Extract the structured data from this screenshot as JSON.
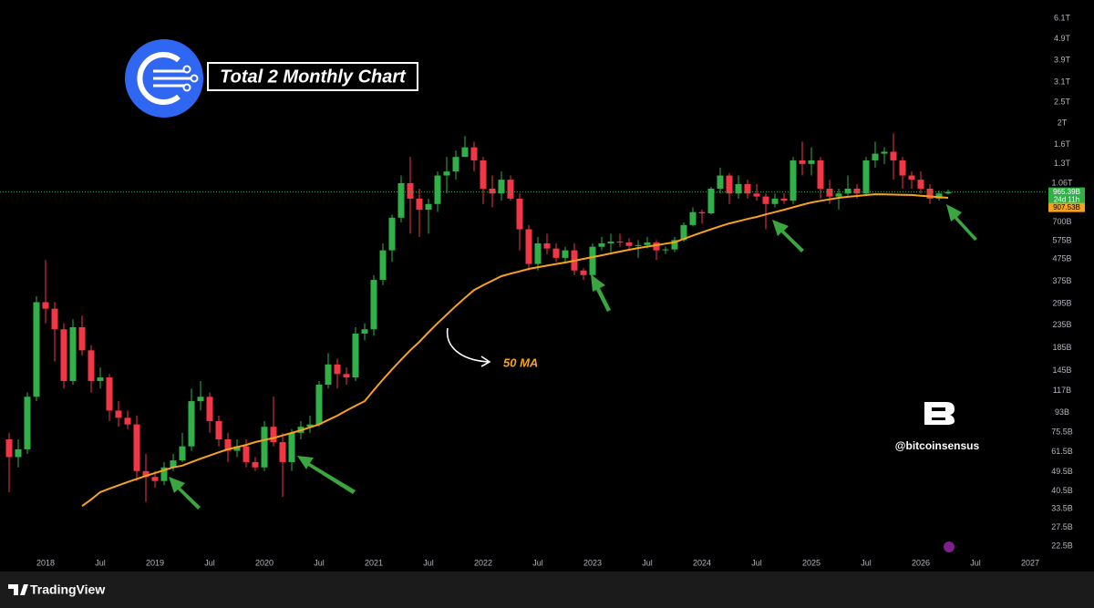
{
  "chart_data": {
    "type": "candlestick",
    "title": "Total 2 Monthly Chart",
    "log_scale": true,
    "grid": false,
    "up_color": "#31b048",
    "down_color": "#f23645",
    "price_line": true,
    "categories": [
      "2017-09",
      "2017-10",
      "2017-11",
      "2017-12",
      "2018-01",
      "2018-02",
      "2018-03",
      "2018-04",
      "2018-05",
      "2018-06",
      "2018-07",
      "2018-08",
      "2018-09",
      "2018-10",
      "2018-11",
      "2018-12",
      "2019-01",
      "2019-02",
      "2019-03",
      "2019-04",
      "2019-05",
      "2019-06",
      "2019-07",
      "2019-08",
      "2019-09",
      "2019-10",
      "2019-11",
      "2019-12",
      "2020-01",
      "2020-02",
      "2020-03",
      "2020-04",
      "2020-05",
      "2020-06",
      "2020-07",
      "2020-08",
      "2020-09",
      "2020-10",
      "2020-11",
      "2020-12",
      "2021-01",
      "2021-02",
      "2021-03",
      "2021-04",
      "2021-05",
      "2021-06",
      "2021-07",
      "2021-08",
      "2021-09",
      "2021-10",
      "2021-11",
      "2021-12",
      "2022-01",
      "2022-02",
      "2022-03",
      "2022-04",
      "2022-05",
      "2022-06",
      "2022-07",
      "2022-08",
      "2022-09",
      "2022-10",
      "2022-11",
      "2022-12",
      "2023-01",
      "2023-02",
      "2023-03",
      "2023-04",
      "2023-05",
      "2023-06",
      "2023-07",
      "2023-08",
      "2023-09",
      "2023-10",
      "2023-11",
      "2023-12",
      "2024-01",
      "2024-02",
      "2024-03",
      "2024-04",
      "2024-05",
      "2024-06",
      "2024-07",
      "2024-08",
      "2024-09",
      "2024-10",
      "2024-11",
      "2024-12",
      "2025-01",
      "2025-02",
      "2025-03",
      "2025-04",
      "2025-05",
      "2025-06",
      "2025-07",
      "2025-08",
      "2025-09",
      "2025-10",
      "2025-11",
      "2025-12",
      "2026-01",
      "2026-02",
      "2026-03",
      "2026-04"
    ],
    "open": [
      70,
      58,
      63,
      110,
      300,
      280,
      225,
      130,
      230,
      180,
      130,
      135,
      95,
      88,
      82,
      50,
      47,
      45,
      52,
      56,
      65,
      105,
      110,
      85,
      70,
      62,
      65,
      55,
      52,
      80,
      68,
      55,
      75,
      80,
      82,
      125,
      155,
      140,
      135,
      215,
      225,
      380,
      520,
      735,
      1060,
      900,
      800,
      850,
      1150,
      1200,
      1400,
      1550,
      1350,
      1000,
      950,
      1100,
      900,
      650,
      450,
      560,
      530,
      480,
      520,
      420,
      400,
      540,
      560,
      570,
      565,
      545,
      550,
      565,
      520,
      525,
      580,
      680,
      780,
      770,
      1000,
      1150,
      950,
      1050,
      950,
      920,
      850,
      900,
      880,
      1350,
      1300,
      1350,
      1000,
      920,
      950,
      1000,
      950,
      1350,
      1450,
      1480,
      1350,
      1150,
      1100,
      1000,
      900,
      950
    ],
    "high": [
      75,
      70,
      115,
      320,
      470,
      300,
      240,
      250,
      260,
      190,
      150,
      140,
      105,
      95,
      90,
      60,
      50,
      55,
      60,
      75,
      120,
      130,
      115,
      90,
      75,
      70,
      70,
      58,
      85,
      110,
      75,
      78,
      85,
      90,
      130,
      175,
      165,
      150,
      230,
      240,
      400,
      560,
      760,
      1150,
      1400,
      1000,
      900,
      1200,
      1400,
      1500,
      1750,
      1650,
      1400,
      1150,
      1200,
      1150,
      950,
      680,
      600,
      620,
      560,
      540,
      560,
      430,
      560,
      600,
      620,
      620,
      590,
      580,
      600,
      580,
      540,
      600,
      700,
      820,
      800,
      1020,
      1250,
      1180,
      1150,
      1100,
      1050,
      950,
      950,
      950,
      1400,
      1650,
      1550,
      1400,
      1100,
      1000,
      1150,
      1050,
      1400,
      1650,
      1550,
      1800,
      1400,
      1200,
      1200,
      1050,
      980,
      990
    ],
    "low": [
      40,
      52,
      60,
      105,
      240,
      160,
      120,
      125,
      170,
      115,
      120,
      85,
      80,
      78,
      45,
      36,
      42,
      43,
      50,
      55,
      62,
      95,
      75,
      65,
      55,
      58,
      52,
      50,
      50,
      65,
      38,
      50,
      70,
      75,
      80,
      120,
      120,
      125,
      130,
      200,
      210,
      360,
      460,
      700,
      620,
      600,
      620,
      780,
      950,
      1100,
      1400,
      1200,
      850,
      820,
      880,
      880,
      520,
      420,
      420,
      500,
      460,
      460,
      400,
      380,
      395,
      520,
      510,
      540,
      520,
      480,
      530,
      470,
      500,
      510,
      570,
      670,
      690,
      760,
      950,
      850,
      900,
      900,
      880,
      650,
      820,
      850,
      850,
      1150,
      1150,
      900,
      850,
      800,
      930,
      900,
      940,
      1250,
      1300,
      1100,
      1000,
      1000,
      950,
      850,
      880,
      940
    ],
    "close": [
      58,
      63,
      110,
      300,
      280,
      225,
      130,
      230,
      180,
      130,
      135,
      95,
      88,
      82,
      50,
      47,
      45,
      52,
      56,
      65,
      105,
      110,
      85,
      70,
      62,
      65,
      55,
      52,
      80,
      68,
      55,
      75,
      80,
      82,
      125,
      155,
      140,
      135,
      215,
      225,
      380,
      520,
      735,
      1060,
      900,
      800,
      850,
      1150,
      1200,
      1400,
      1550,
      1350,
      1000,
      950,
      1100,
      900,
      650,
      450,
      560,
      530,
      480,
      520,
      420,
      400,
      540,
      560,
      570,
      565,
      545,
      550,
      565,
      520,
      525,
      580,
      680,
      780,
      770,
      1000,
      1150,
      950,
      1050,
      950,
      920,
      850,
      900,
      880,
      1350,
      1300,
      1350,
      1000,
      920,
      950,
      1000,
      950,
      1350,
      1450,
      1480,
      1350,
      1150,
      1100,
      1000,
      900,
      950,
      965.39
    ],
    "overlay": {
      "color": "#f7a21b",
      "values": [
        null,
        null,
        null,
        null,
        null,
        null,
        null,
        null,
        34.5,
        37,
        40,
        41.5,
        43,
        44.5,
        46,
        47.5,
        49,
        50.5,
        52,
        53,
        55,
        57,
        59,
        61,
        63,
        64.5,
        66,
        68,
        69.5,
        71,
        73,
        75,
        77,
        79.5,
        82,
        86,
        90,
        95,
        100,
        105,
        118,
        132,
        147,
        163,
        180,
        197,
        218,
        240,
        263,
        288,
        314,
        341,
        359,
        377,
        395,
        406,
        416,
        427,
        435,
        442,
        450,
        457,
        466,
        475,
        484,
        493,
        503,
        513,
        523,
        533,
        541,
        549,
        558,
        566,
        587,
        608,
        629,
        650,
        671,
        692,
        708,
        725,
        741,
        761,
        780,
        800,
        821,
        843,
        864,
        879,
        893,
        908,
        917,
        925,
        934,
        943,
        941,
        939,
        937,
        935,
        928,
        921,
        914,
        907.53
      ]
    },
    "price_label": "965.39B",
    "countdown": "24d 11h",
    "overlay_label": "907.53B",
    "ylim": [
      20.9,
      7400
    ],
    "yticks": [
      {
        "value": 6100,
        "label": "6.1T"
      },
      {
        "value": 4900,
        "label": "4.9T"
      },
      {
        "value": 3900,
        "label": "3.9T"
      },
      {
        "value": 3100,
        "label": "3.1T"
      },
      {
        "value": 2500,
        "label": "2.5T"
      },
      {
        "value": 2000,
        "label": "2T"
      },
      {
        "value": 1600,
        "label": "1.6T"
      },
      {
        "value": 1300,
        "label": "1.3T"
      },
      {
        "value": 1060,
        "label": "1.06T"
      },
      {
        "value": 700,
        "label": "700B"
      },
      {
        "value": 575,
        "label": "575B"
      },
      {
        "value": 475,
        "label": "475B"
      },
      {
        "value": 375,
        "label": "375B"
      },
      {
        "value": 295,
        "label": "295B"
      },
      {
        "value": 235,
        "label": "235B"
      },
      {
        "value": 185,
        "label": "185B"
      },
      {
        "value": 145,
        "label": "145B"
      },
      {
        "value": 117,
        "label": "117B"
      },
      {
        "value": 93,
        "label": "93B"
      },
      {
        "value": 75.5,
        "label": "75.5B"
      },
      {
        "value": 61.5,
        "label": "61.5B"
      },
      {
        "value": 49.5,
        "label": "49.5B"
      },
      {
        "value": 40.5,
        "label": "40.5B"
      },
      {
        "value": 33.5,
        "label": "33.5B"
      },
      {
        "value": 27.5,
        "label": "27.5B"
      },
      {
        "value": 22.5,
        "label": "22.5B"
      }
    ],
    "xticks": [
      {
        "value": "2018-01",
        "label": "2018"
      },
      {
        "value": "2018-07",
        "label": "Jul"
      },
      {
        "value": "2019-01",
        "label": "2019"
      },
      {
        "value": "2019-07",
        "label": "Jul"
      },
      {
        "value": "2020-01",
        "label": "2020"
      },
      {
        "value": "2020-07",
        "label": "Jul"
      },
      {
        "value": "2021-01",
        "label": "2021"
      },
      {
        "value": "2021-07",
        "label": "Jul"
      },
      {
        "value": "2022-01",
        "label": "2022"
      },
      {
        "value": "2022-07",
        "label": "Jul"
      },
      {
        "value": "2023-01",
        "label": "2023"
      },
      {
        "value": "2023-07",
        "label": "Jul"
      },
      {
        "value": "2024-01",
        "label": "2024"
      },
      {
        "value": "2024-07",
        "label": "Jul"
      },
      {
        "value": "2025-01",
        "label": "2025"
      },
      {
        "value": "2025-07",
        "label": "Jul"
      },
      {
        "value": "2026-01",
        "label": "2026"
      },
      {
        "value": "2026-07",
        "label": "Jul"
      },
      {
        "value": "2027-01",
        "label": "2027"
      }
    ],
    "annotations": {
      "ma_label": "50 MA",
      "handle": "@bitcoinsensus",
      "brand": "TradingView"
    }
  }
}
